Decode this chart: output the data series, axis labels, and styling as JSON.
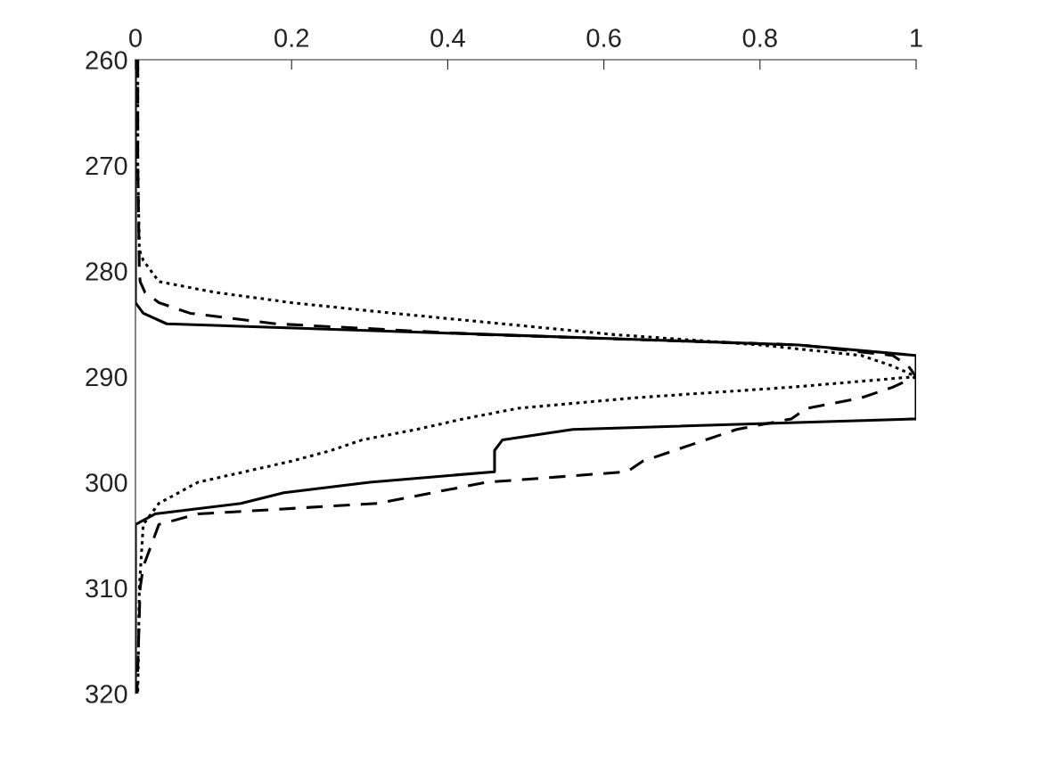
{
  "chart_data": {
    "type": "line",
    "xlim": [
      0,
      1
    ],
    "xticks": [
      0,
      0.2,
      0.4,
      0.6,
      0.8,
      1
    ],
    "ylim": [
      320,
      260
    ],
    "yticks": [
      260,
      270,
      280,
      290,
      300,
      310,
      320
    ],
    "grid": false,
    "legend": false,
    "marker": "none",
    "series": [
      {
        "color": "#000000",
        "line_style": "solid",
        "x": [
          0,
          0,
          0,
          0.01,
          0.04,
          0.45,
          0.85,
          1,
          1,
          1,
          1,
          1,
          1,
          1,
          0.56,
          0.47,
          0.46,
          0.46,
          0.46,
          0.3,
          0.19,
          0.135,
          0.025,
          0,
          0
        ],
        "values": [
          260,
          282,
          283,
          284,
          285,
          286,
          287,
          288,
          289,
          290,
          291,
          292,
          293,
          294,
          295,
          296,
          297,
          298,
          299,
          300,
          301,
          302,
          303,
          304,
          320
        ]
      },
      {
        "color": "#000000",
        "line_style": "dashed",
        "x": [
          0.003,
          0.003,
          0.005,
          0.006,
          0.012,
          0.03,
          0.07,
          0.18,
          0.44,
          0.85,
          0.97,
          0.99,
          1,
          0.97,
          0.93,
          0.86,
          0.84,
          0.77,
          0.73,
          0.69,
          0.65,
          0.63,
          0.45,
          0.38,
          0.31,
          0.08,
          0.03,
          0.025,
          0.02,
          0.01,
          0.006,
          0.004,
          0.002
        ],
        "values": [
          260,
          270,
          280,
          281,
          282,
          283,
          284,
          285,
          286,
          287,
          288,
          289,
          290,
          291,
          292,
          293,
          294,
          295,
          296,
          297,
          298,
          299,
          300,
          301,
          302,
          303,
          304,
          305,
          306,
          308,
          310,
          315,
          320
        ]
      },
      {
        "color": "#000000",
        "line_style": "dotted",
        "x": [
          0.003,
          0.003,
          0.005,
          0.01,
          0.02,
          0.03,
          0.1,
          0.2,
          0.33,
          0.47,
          0.61,
          0.8,
          0.93,
          0.97,
          1,
          0.84,
          0.64,
          0.49,
          0.42,
          0.36,
          0.29,
          0.25,
          0.2,
          0.14,
          0.08,
          0.055,
          0.03,
          0.02,
          0.01,
          0.005,
          0.003
        ],
        "values": [
          260,
          270,
          278,
          279,
          280,
          281,
          282,
          283,
          284,
          285,
          286,
          287,
          288,
          289,
          290,
          291,
          292,
          293,
          294,
          295,
          296,
          297,
          298,
          299,
          300,
          301,
          302,
          303,
          304,
          310,
          320
        ]
      }
    ]
  }
}
